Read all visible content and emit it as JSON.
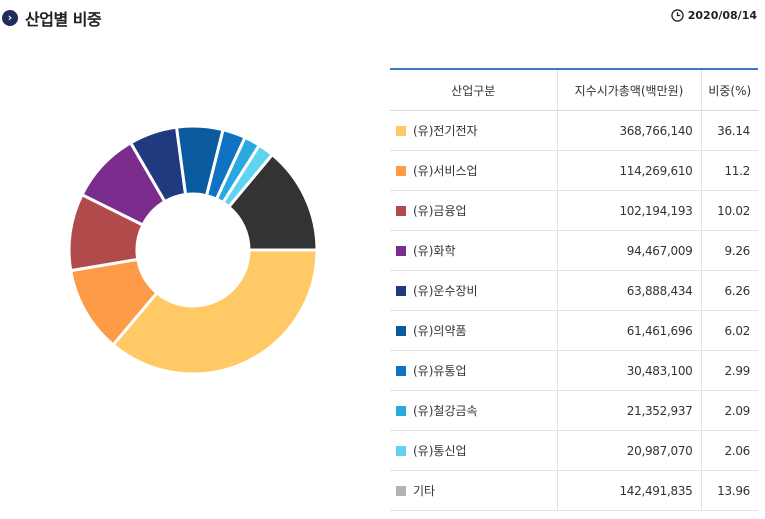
{
  "header": {
    "title": "산업별 비중",
    "date": "2020/08/14"
  },
  "table": {
    "headers": [
      "산업구분",
      "지수시가총액(백만원)",
      "비중(%)"
    ]
  },
  "chart_data": {
    "type": "pie",
    "donut": true,
    "categories": [
      "(유)전기전자",
      "(유)서비스업",
      "(유)금융업",
      "(유)화학",
      "(유)운수장비",
      "(유)의약품",
      "(유)유통업",
      "(유)철강금속",
      "(유)통신업",
      "기타"
    ],
    "market_cap": [
      "368,766,140",
      "114,269,610",
      "102,194,193",
      "94,467,009",
      "63,888,434",
      "61,461,696",
      "30,483,100",
      "21,352,937",
      "20,987,070",
      "142,491,835"
    ],
    "values": [
      36.14,
      11.2,
      10.02,
      9.26,
      6.26,
      6.02,
      2.99,
      2.09,
      2.06,
      13.96
    ],
    "value_labels": [
      "36.14",
      "11.2",
      "10.02",
      "9.26",
      "6.26",
      "6.02",
      "2.99",
      "2.09",
      "2.06",
      "13.96"
    ],
    "colors": [
      "#ffc966",
      "#ff9a47",
      "#b14a4a",
      "#7b2d8e",
      "#1f3a7f",
      "#0a5aa0",
      "#0f72c2",
      "#2aa8e0",
      "#5fd3f2",
      "#333333"
    ],
    "legend_swatch_colors": [
      "#ffc966",
      "#ff9a47",
      "#b14a4a",
      "#7b2d8e",
      "#1f3a7f",
      "#0a5aa0",
      "#0f72c2",
      "#2aa8e0",
      "#5fd3f2",
      "#b3b3b3"
    ]
  }
}
